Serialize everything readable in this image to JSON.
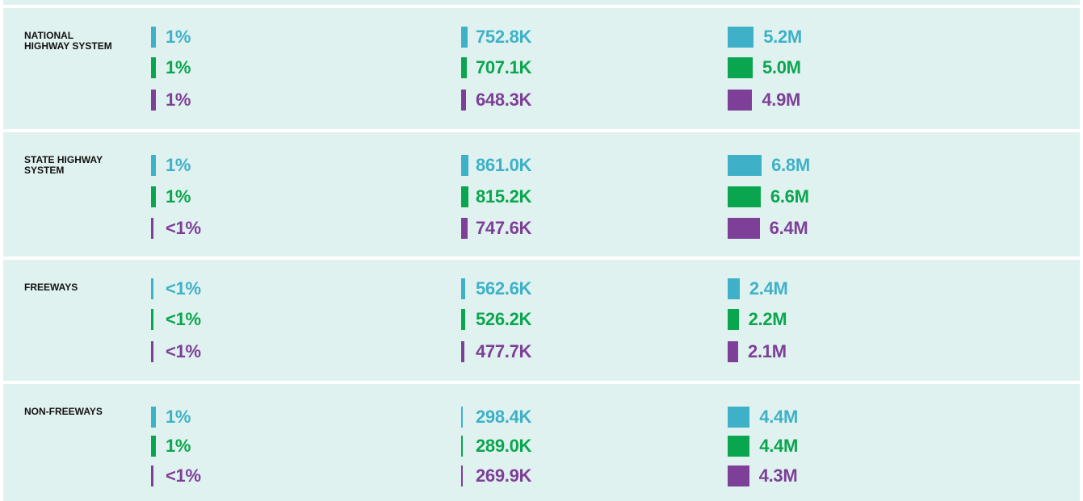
{
  "colors": [
    "#3eb1c8",
    "#0aa64f",
    "#7d3f98"
  ],
  "rows": [
    {
      "label": "NATIONAL HIGHWAY SYSTEM",
      "groups": [
        {
          "values": [
            1,
            1,
            1
          ],
          "value_labels": [
            "1%",
            "1%",
            "1%"
          ]
        },
        {
          "values": [
            752800,
            707100,
            648300
          ],
          "value_labels": [
            "752.8K",
            "707.1K",
            "648.3K"
          ]
        },
        {
          "values": [
            5200000,
            5000000,
            4900000
          ],
          "value_labels": [
            "5.2M",
            "5.0M",
            "4.9M"
          ]
        }
      ]
    },
    {
      "label": "STATE HIGHWAY SYSTEM",
      "groups": [
        {
          "values": [
            1,
            1,
            0.5
          ],
          "value_labels": [
            "1%",
            "1%",
            "<1%"
          ]
        },
        {
          "values": [
            861000,
            815200,
            747600
          ],
          "value_labels": [
            "861.0K",
            "815.2K",
            "747.6K"
          ]
        },
        {
          "values": [
            6800000,
            6600000,
            6400000
          ],
          "value_labels": [
            "6.8M",
            "6.6M",
            "6.4M"
          ]
        }
      ]
    },
    {
      "label": "FREEWAYS",
      "groups": [
        {
          "values": [
            0.5,
            0.5,
            0.5
          ],
          "value_labels": [
            "<1%",
            "<1%",
            "<1%"
          ]
        },
        {
          "values": [
            562600,
            526200,
            477700
          ],
          "value_labels": [
            "562.6K",
            "526.2K",
            "477.7K"
          ]
        },
        {
          "values": [
            2400000,
            2200000,
            2100000
          ],
          "value_labels": [
            "2.4M",
            "2.2M",
            "2.1M"
          ]
        }
      ]
    },
    {
      "label": "NON-FREEWAYS",
      "groups": [
        {
          "values": [
            1,
            1,
            0.5
          ],
          "value_labels": [
            "1%",
            "1%",
            "<1%"
          ]
        },
        {
          "values": [
            298400,
            289000,
            269900
          ],
          "value_labels": [
            "298.4K",
            "289.0K",
            "269.9K"
          ]
        },
        {
          "values": [
            4400000,
            4400000,
            4300000
          ],
          "value_labels": [
            "4.4M",
            "4.4M",
            "4.3M"
          ]
        }
      ]
    }
  ]
}
